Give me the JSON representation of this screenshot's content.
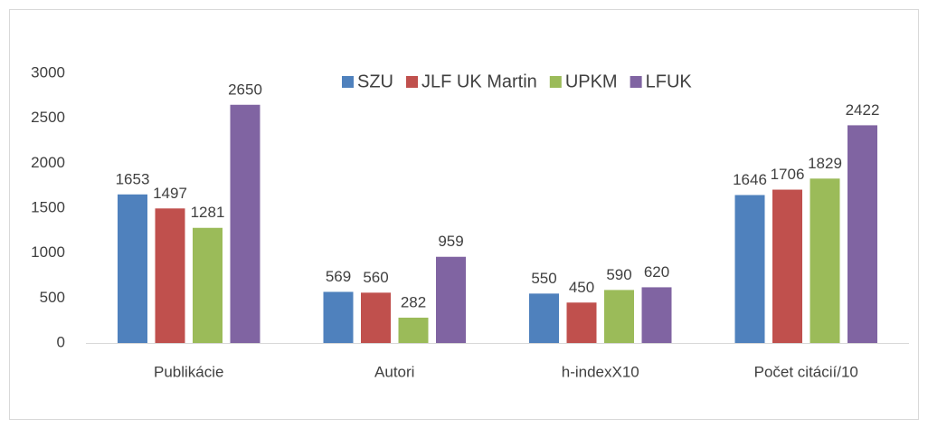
{
  "chart_data": {
    "type": "bar",
    "categories": [
      "Publikácie",
      "Autori",
      "h-indexX10",
      "Počet citácií/10"
    ],
    "series": [
      {
        "name": "SZU",
        "color": "#4f81bd",
        "values": [
          1653,
          569,
          550,
          1646
        ]
      },
      {
        "name": "JLF UK Martin",
        "color": "#c0504d",
        "values": [
          1497,
          560,
          450,
          1706
        ]
      },
      {
        "name": "UPKM",
        "color": "#9bbb59",
        "values": [
          1281,
          282,
          590,
          1829
        ]
      },
      {
        "name": "LFUK",
        "color": "#8064a2",
        "values": [
          2650,
          959,
          620,
          2422
        ]
      }
    ],
    "ylim": [
      0,
      3000
    ],
    "yticks": [
      0,
      500,
      1000,
      1500,
      2000,
      2500,
      3000
    ],
    "grid": false,
    "legend": "top"
  }
}
